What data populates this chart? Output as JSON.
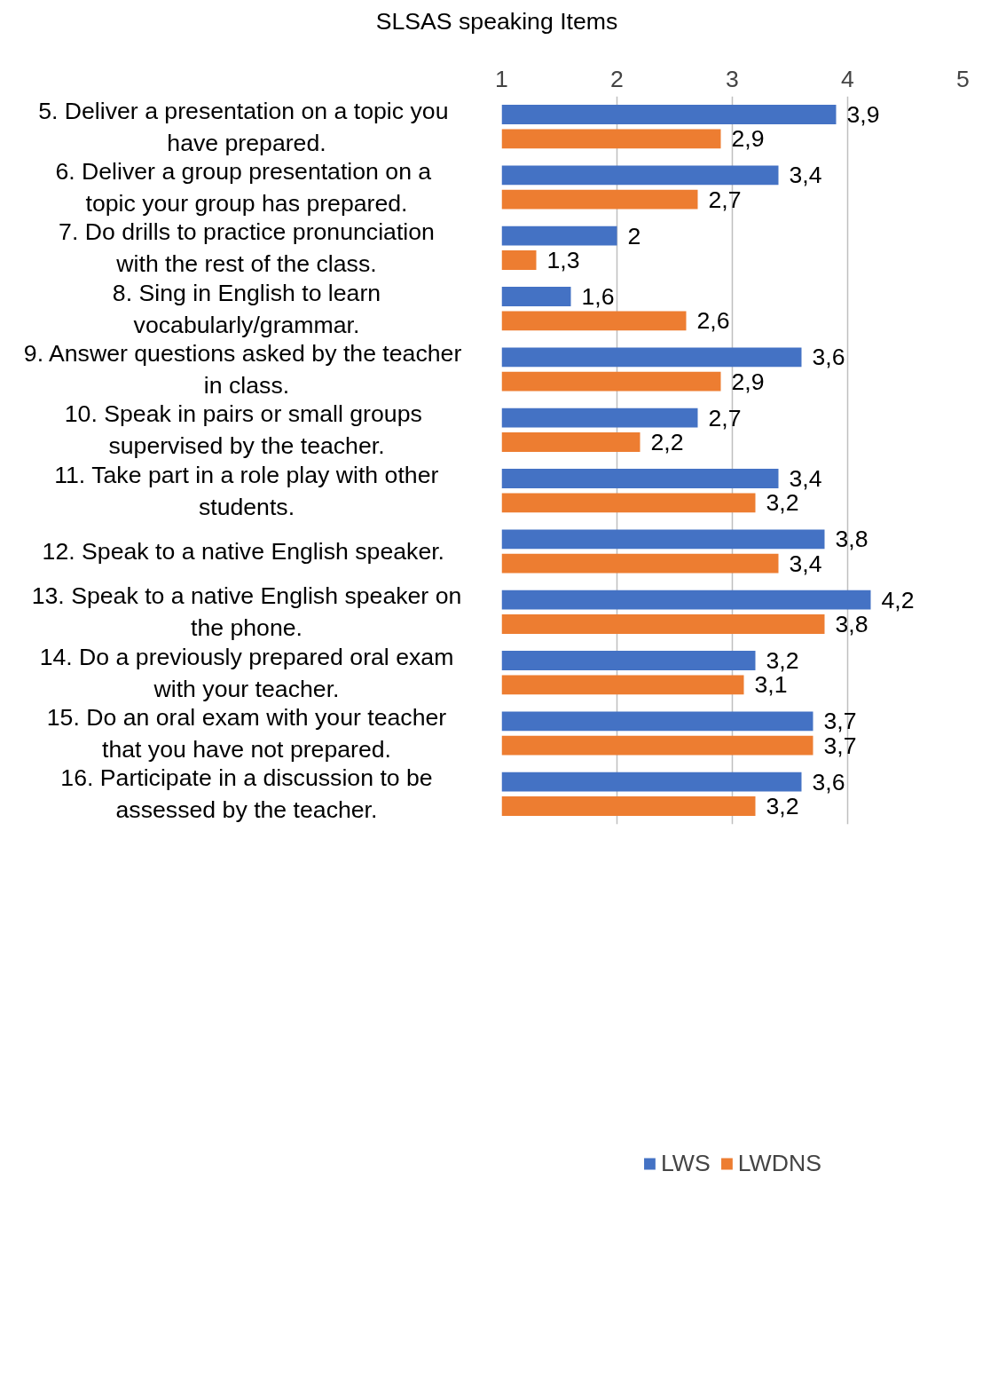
{
  "chart_data": {
    "type": "bar",
    "orientation": "horizontal",
    "title": "SLSAS speaking Items",
    "categories": [
      "5.  Deliver a presentation on a topic you have prepared.",
      "6.  Deliver a group presentation on a topic your group has prepared.",
      "7. Do drills to practice pronunciation with the rest of the class.",
      "8. Sing in English to learn vocabularly/grammar.",
      "9.  Answer questions asked by the teacher in class.",
      "10.  Speak in pairs or small groups supervised by the teacher.",
      "11. Take part in a role play with other students.",
      "12.  Speak to a native English speaker.",
      "13. Speak to a native English speaker on the phone.",
      "14. Do a previously prepared oral exam with your teacher.",
      "15. Do an oral exam with your teacher that you have not prepared.",
      "16. Participate in a discussion to be assessed by the teacher."
    ],
    "series": [
      {
        "name": "LWS",
        "color": "#4472c4",
        "values": [
          3.9,
          3.4,
          2,
          1.6,
          3.6,
          2.7,
          3.4,
          3.8,
          4.2,
          3.2,
          3.7,
          3.6
        ],
        "value_labels": [
          "3,9",
          "3,4",
          "2",
          "1,6",
          "3,6",
          "2,7",
          "3,4",
          "3,8",
          "4,2",
          "3,2",
          "3,7",
          "3,6"
        ]
      },
      {
        "name": "LWDNS",
        "color": "#ed7d31",
        "values": [
          2.9,
          2.7,
          1.3,
          2.6,
          2.9,
          2.2,
          3.2,
          3.4,
          3.8,
          3.1,
          3.7,
          3.2
        ],
        "value_labels": [
          "2,9",
          "2,7",
          "1,3",
          "2,6",
          "2,9",
          "2,2",
          "3,2",
          "3,4",
          "3,8",
          "3,1",
          "3,7",
          "3,2"
        ]
      }
    ],
    "xlim": [
      1,
      5
    ],
    "xticks": [
      1,
      2,
      3,
      4,
      5
    ],
    "grid": "x",
    "legend": "bottom"
  }
}
